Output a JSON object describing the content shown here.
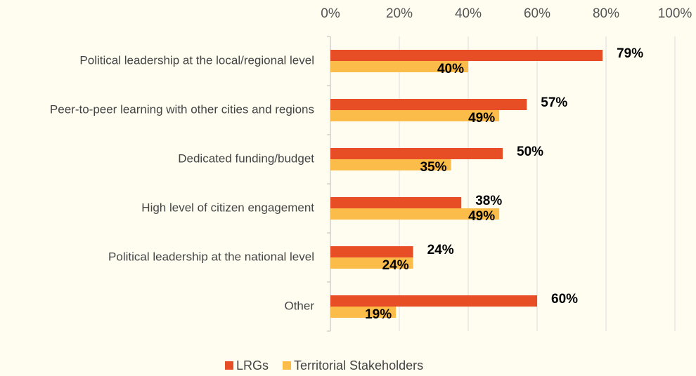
{
  "chart_data": {
    "type": "bar",
    "orientation": "horizontal",
    "categories": [
      "Political leadership at the local/regional level",
      "Peer-to-peer learning with other cities and regions",
      "Dedicated funding/budget",
      "High level of citizen engagement",
      "Political leadership at the national level",
      "Other"
    ],
    "series": [
      {
        "name": "LRGs",
        "color": "#e84e26",
        "values": [
          79,
          57,
          50,
          38,
          24,
          60
        ],
        "value_labels": [
          "79%",
          "57%",
          "50%",
          "38%",
          "24%",
          "60%"
        ]
      },
      {
        "name": "Territorial Stakeholders",
        "color": "#fbbc4a",
        "values": [
          40,
          49,
          35,
          49,
          24,
          19
        ],
        "value_labels": [
          "40%",
          "49%",
          "35%",
          "49%",
          "24%",
          "19%"
        ]
      }
    ],
    "xlim": [
      0,
      100
    ],
    "xticks": [
      {
        "value": 0,
        "label": "0%"
      },
      {
        "value": 20,
        "label": "20%"
      },
      {
        "value": 40,
        "label": "40%"
      },
      {
        "value": 60,
        "label": "60%"
      },
      {
        "value": 80,
        "label": "80%"
      },
      {
        "value": 100,
        "label": "100%"
      }
    ],
    "grid": true,
    "legend": "bottom"
  }
}
